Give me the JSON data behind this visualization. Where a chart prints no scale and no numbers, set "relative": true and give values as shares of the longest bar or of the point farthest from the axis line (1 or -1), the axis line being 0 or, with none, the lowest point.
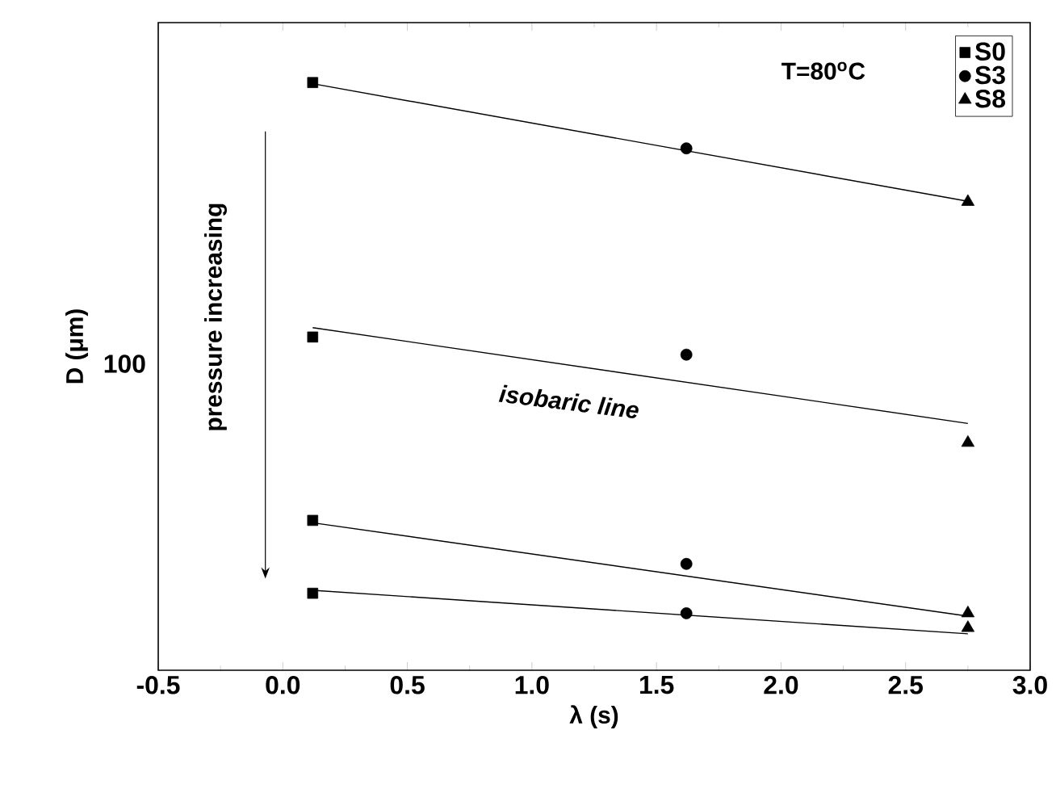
{
  "chart_data": {
    "type": "scatter",
    "xlabel": "λ (s)",
    "ylabel": "D (μm)",
    "relative": true,
    "xlim": [
      -0.5,
      3.0
    ],
    "xticks": [
      {
        "value": -0.5,
        "label": "-0.5"
      },
      {
        "value": 0,
        "label": "0.0"
      },
      {
        "value": 0.5,
        "label": "0.5"
      },
      {
        "value": 1,
        "label": "1.0"
      },
      {
        "value": 1.5,
        "label": "1.5"
      },
      {
        "value": 2,
        "label": "2.0"
      },
      {
        "value": 2.5,
        "label": "2.5"
      },
      {
        "value": 3,
        "label": "3.0"
      }
    ],
    "legend": "top right",
    "annotations": [
      "T=80$^{o}$C",
      "isobaric line",
      "pressure increasing",
      "100"
    ],
    "series": [
      {
        "name": "S0",
        "color": "#000000",
        "marker": "square",
        "x": [
          0.12,
          0.12,
          0.12,
          0.12
        ],
        "values": [
          1,
          0.567,
          0.255,
          0.131
        ]
      },
      {
        "name": "S3",
        "color": "#000000",
        "marker": "circle",
        "x": [
          1.62,
          1.62,
          1.62,
          1.62
        ],
        "values": [
          0.888,
          0.537,
          0.181,
          0.097
        ]
      },
      {
        "name": "S8",
        "color": "#000000",
        "marker": "triangle",
        "x": [
          2.75,
          2.75,
          2.75,
          2.75
        ],
        "values": [
          0.797,
          0.387,
          0.097,
          0.072
        ]
      },
      {
        "type": "line",
        "color": "#000000",
        "marker": "none",
        "x": [
          0.12,
          2.75
        ],
        "values": [
          0.998,
          0.798
        ]
      },
      {
        "type": "line",
        "color": "#000000",
        "marker": "none",
        "x": [
          0.12,
          2.75
        ],
        "values": [
          0.583,
          0.42
        ]
      },
      {
        "type": "line",
        "color": "#000000",
        "marker": "none",
        "x": [
          0.12,
          2.75
        ],
        "values": [
          0.251,
          0.092
        ]
      },
      {
        "type": "line",
        "color": "#000000",
        "marker": "none",
        "x": [
          0.12,
          2.75
        ],
        "values": [
          0.136,
          0.062
        ]
      }
    ]
  }
}
